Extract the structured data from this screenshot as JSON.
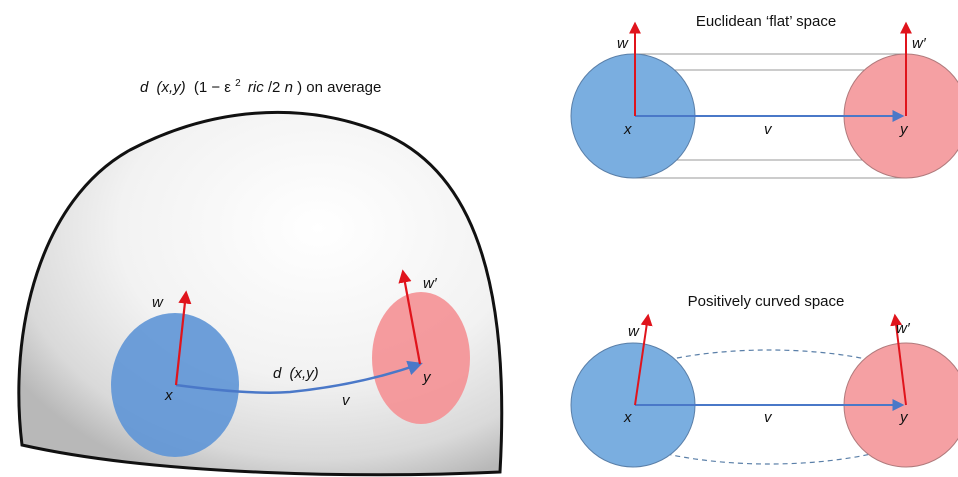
{
  "left_panel": {
    "caption_d": "d",
    "caption_xy": "(x,y)",
    "caption_paren_open": "(1 − ε",
    "caption_sup": "2",
    "caption_ric": "ric",
    "caption_over": "/2",
    "caption_n": "n",
    "caption_rest": ") on average",
    "label_w": "w",
    "label_w_prime": "w′",
    "label_d": "d",
    "label_dxy": "(x,y)",
    "label_x": "x",
    "label_y": "y",
    "label_v": "v"
  },
  "flat_panel": {
    "title": "Euclidean ‘flat’ space",
    "label_w": "w",
    "label_w_prime": "w′",
    "label_x": "x",
    "label_y": "y",
    "label_v": "v"
  },
  "curved_panel": {
    "title": "Positively curved space",
    "label_w": "w",
    "label_w_prime": "w′",
    "label_x": "x",
    "label_y": "y",
    "label_v": "v"
  },
  "colors": {
    "blue_disc": "#7aaee0",
    "red_disc": "#f5a0a3",
    "arrow_red": "#e0141c",
    "arrow_blue": "#4a78c8"
  }
}
